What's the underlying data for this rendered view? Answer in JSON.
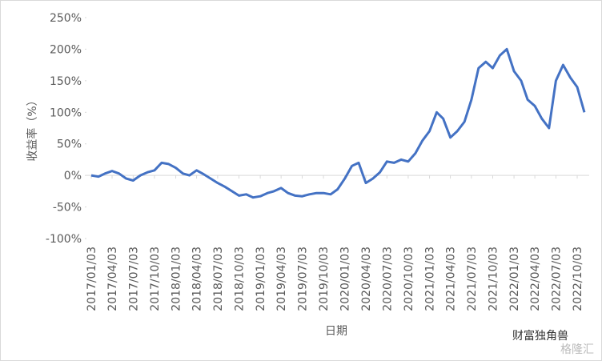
{
  "chart_data": {
    "type": "line",
    "y_label": "收益率（%）",
    "x_label": "日期",
    "watermark": "财富独角兽",
    "watermark2": "格隆汇",
    "x": [
      "2017/01/03",
      "2017/02/03",
      "2017/03/03",
      "2017/04/03",
      "2017/05/03",
      "2017/06/03",
      "2017/07/03",
      "2017/08/03",
      "2017/09/03",
      "2017/10/03",
      "2017/11/03",
      "2017/12/03",
      "2018/01/03",
      "2018/02/03",
      "2018/03/03",
      "2018/04/03",
      "2018/05/03",
      "2018/06/03",
      "2018/07/03",
      "2018/08/03",
      "2018/09/03",
      "2018/10/03",
      "2018/11/03",
      "2018/12/03",
      "2019/01/03",
      "2019/02/03",
      "2019/03/03",
      "2019/04/03",
      "2019/05/03",
      "2019/06/03",
      "2019/07/03",
      "2019/08/03",
      "2019/09/03",
      "2019/10/03",
      "2019/11/03",
      "2019/12/03",
      "2020/01/03",
      "2020/02/03",
      "2020/03/03",
      "2020/04/03",
      "2020/05/03",
      "2020/06/03",
      "2020/07/03",
      "2020/08/03",
      "2020/09/03",
      "2020/10/03",
      "2020/11/03",
      "2020/12/03",
      "2021/01/03",
      "2021/02/03",
      "2021/03/03",
      "2021/04/03",
      "2021/05/03",
      "2021/06/03",
      "2021/07/03",
      "2021/08/03",
      "2021/09/03",
      "2021/10/03",
      "2021/11/03",
      "2021/12/03",
      "2022/01/03",
      "2022/02/03",
      "2022/03/03",
      "2022/04/03",
      "2022/05/03",
      "2022/06/03",
      "2022/07/03",
      "2022/08/03",
      "2022/09/03",
      "2022/10/03",
      "2022/11/03"
    ],
    "series": [
      {
        "name": "收益率",
        "color": "#4472c4",
        "values": [
          0,
          -2,
          3,
          7,
          3,
          -5,
          -8,
          0,
          5,
          8,
          20,
          18,
          12,
          3,
          0,
          8,
          2,
          -5,
          -12,
          -18,
          -25,
          -32,
          -30,
          -35,
          -33,
          -28,
          -25,
          -20,
          -28,
          -32,
          -33,
          -30,
          -28,
          -28,
          -30,
          -22,
          -5,
          15,
          20,
          -12,
          -5,
          5,
          22,
          20,
          25,
          22,
          35,
          55,
          70,
          100,
          90,
          60,
          70,
          85,
          120,
          170,
          180,
          170,
          190,
          200,
          165,
          150,
          120,
          110,
          90,
          75,
          150,
          175,
          155,
          140,
          100
        ]
      }
    ],
    "xlim": [
      "2017/01/03",
      "2022/11/03"
    ],
    "xticks": [
      "2017/01/03",
      "2017/04/03",
      "2017/07/03",
      "2017/10/03",
      "2018/01/03",
      "2018/04/03",
      "2018/07/03",
      "2018/10/03",
      "2019/01/03",
      "2019/04/03",
      "2019/07/03",
      "2019/10/03",
      "2020/01/03",
      "2020/04/03",
      "2020/07/03",
      "2020/10/03",
      "2021/01/03",
      "2021/04/03",
      "2021/07/03",
      "2021/10/03",
      "2022/01/03",
      "2022/04/03",
      "2022/07/03",
      "2022/10/03"
    ],
    "ylim": [
      -100,
      250
    ],
    "yticks": [
      {
        "value": -100,
        "label": "-100%"
      },
      {
        "value": -50,
        "label": "-50%"
      },
      {
        "value": 0,
        "label": "0%"
      },
      {
        "value": 50,
        "label": "50%"
      },
      {
        "value": 100,
        "label": "100%"
      },
      {
        "value": 150,
        "label": "150%"
      },
      {
        "value": 200,
        "label": "200%"
      },
      {
        "value": 250,
        "label": "250%"
      }
    ],
    "grid": false
  }
}
